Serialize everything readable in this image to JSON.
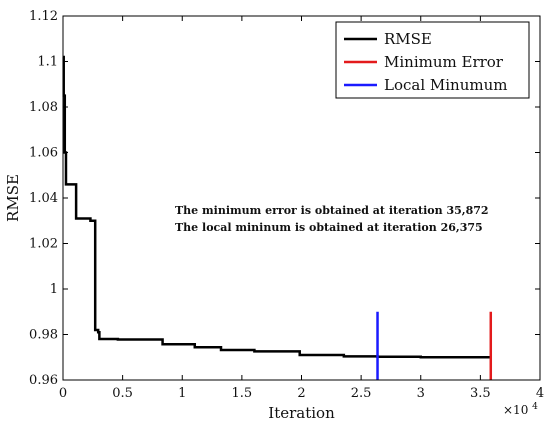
{
  "chart_data": {
    "type": "line",
    "xlabel": "Iteration",
    "ylabel": "RMSE",
    "x_multiplier_label": "×10",
    "x_multiplier_exponent": "4",
    "xlim": [
      0,
      40000
    ],
    "ylim": [
      0.96,
      1.12
    ],
    "xticks": [
      0,
      5000,
      10000,
      15000,
      20000,
      25000,
      30000,
      35000,
      40000
    ],
    "xtick_labels": [
      "0",
      "0.5",
      "1",
      "1.5",
      "2",
      "2.5",
      "3",
      "3.5",
      "4"
    ],
    "yticks": [
      0.96,
      0.98,
      1.0,
      1.02,
      1.04,
      1.06,
      1.08,
      1.1,
      1.12
    ],
    "ytick_labels": [
      "0.96",
      "0.98",
      "1",
      "1.02",
      "1.04",
      "1.06",
      "1.08",
      "1.1",
      "1.12"
    ],
    "grid": false,
    "legend_position": "top-right",
    "series": [
      {
        "name": "RMSE",
        "color": "#000000",
        "step": true,
        "points": [
          [
            0,
            1.102
          ],
          [
            60,
            1.085
          ],
          [
            150,
            1.06
          ],
          [
            250,
            1.046
          ],
          [
            1000,
            1.046
          ],
          [
            1100,
            1.031
          ],
          [
            2300,
            1.03
          ],
          [
            2600,
            1.03
          ],
          [
            2700,
            0.982
          ],
          [
            2950,
            0.981
          ],
          [
            3050,
            0.978
          ],
          [
            4500,
            0.978
          ],
          [
            4600,
            0.9778
          ],
          [
            8300,
            0.9778
          ],
          [
            8350,
            0.9757
          ],
          [
            11000,
            0.9757
          ],
          [
            11050,
            0.9744
          ],
          [
            13200,
            0.9744
          ],
          [
            13250,
            0.9732
          ],
          [
            16000,
            0.9732
          ],
          [
            16050,
            0.9726
          ],
          [
            19800,
            0.9726
          ],
          [
            19850,
            0.971
          ],
          [
            23500,
            0.971
          ],
          [
            23550,
            0.9704
          ],
          [
            26375,
            0.9702
          ],
          [
            30000,
            0.97
          ],
          [
            35872,
            0.97
          ]
        ]
      }
    ],
    "markers": [
      {
        "name": "Minimum Error",
        "color": "#e31a1c",
        "x": 35872,
        "y_range": [
          0.96,
          0.99
        ]
      },
      {
        "name": "Local Minumum",
        "color": "#1a1aff",
        "x": 26375,
        "y_range": [
          0.96,
          0.99
        ]
      }
    ],
    "annotations": [
      "The minimum error is obtained at iteration 35,872",
      "The local mininum is obtained at iteration 26,375"
    ]
  }
}
